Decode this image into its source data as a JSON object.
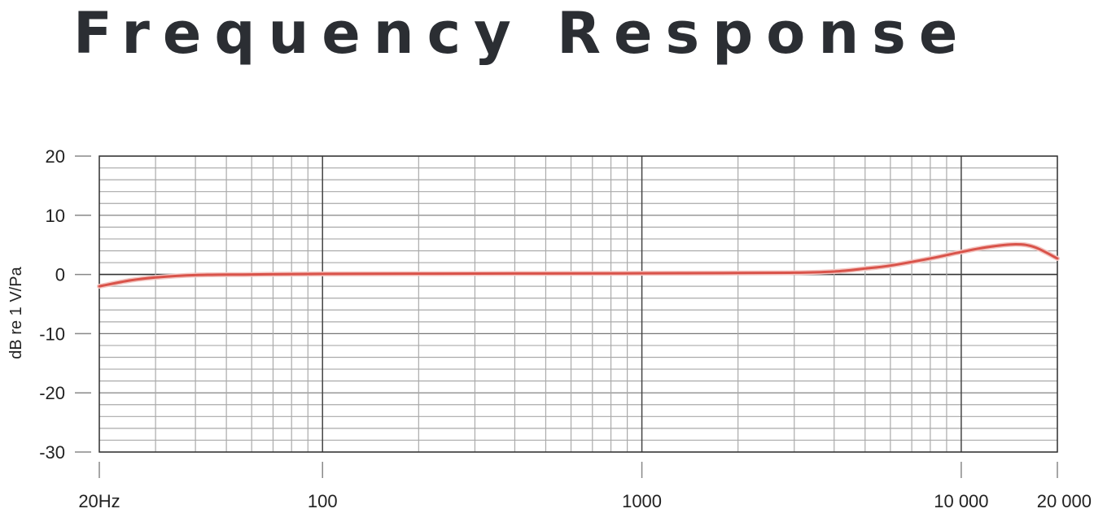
{
  "chart_data": {
    "type": "line",
    "title": "Frequency Response",
    "xlabel": "",
    "ylabel": "dB re 1 V/Pa",
    "xscale": "log",
    "xlim": [
      20,
      20000
    ],
    "ylim": [
      -30,
      20
    ],
    "grid": true,
    "x_tick_labels": [
      {
        "value": 20,
        "label": "20Hz"
      },
      {
        "value": 100,
        "label": "100"
      },
      {
        "value": 1000,
        "label": "1000"
      },
      {
        "value": 10000,
        "label": "10 000"
      },
      {
        "value": 20000,
        "label": "20 000"
      }
    ],
    "y_tick_labels": [
      {
        "value": 20,
        "label": "20"
      },
      {
        "value": 10,
        "label": "10"
      },
      {
        "value": 0,
        "label": "0"
      },
      {
        "value": -10,
        "label": "-10"
      },
      {
        "value": -20,
        "label": "-20"
      },
      {
        "value": -30,
        "label": "-30"
      }
    ],
    "series": [
      {
        "color": "#d9534a",
        "x": [
          20,
          25,
          30,
          40,
          60,
          100,
          300,
          1000,
          2000,
          3000,
          4000,
          5000,
          6000,
          8000,
          10000,
          12000,
          14800,
          17000,
          20000
        ],
        "y": [
          -2.0,
          -1.0,
          -0.5,
          -0.1,
          0.0,
          0.1,
          0.15,
          0.2,
          0.25,
          0.3,
          0.5,
          1.0,
          1.5,
          2.7,
          3.8,
          4.6,
          5.1,
          4.6,
          2.7
        ]
      }
    ]
  }
}
